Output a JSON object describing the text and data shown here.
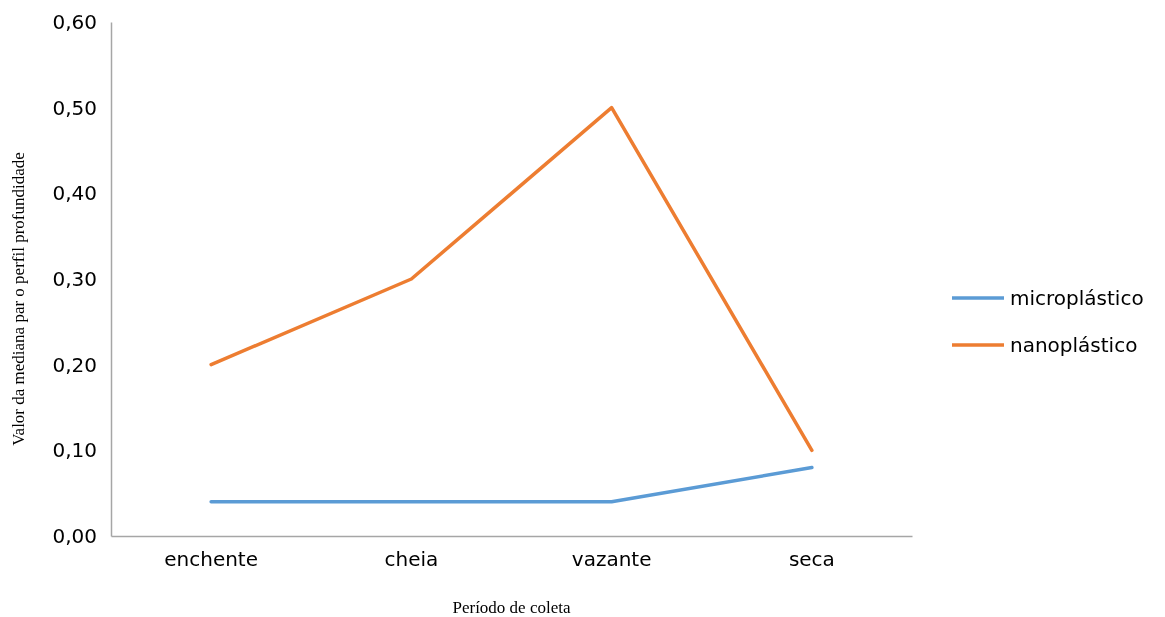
{
  "chart_data": {
    "type": "line",
    "xlabel": "Período de coleta",
    "ylabel": "Valor da mediana par o perfil profundidade",
    "categories": [
      "enchente",
      "cheia",
      "vazante",
      "seca"
    ],
    "series": [
      {
        "name": "microplástico",
        "color": "#5b9bd5",
        "values": [
          0.04,
          0.04,
          0.04,
          0.08
        ]
      },
      {
        "name": "nanoplástico",
        "color": "#ed7d31",
        "values": [
          0.2,
          0.3,
          0.5,
          0.1
        ]
      }
    ],
    "ylim": [
      0,
      0.6
    ],
    "yticks": [
      {
        "value": 0,
        "label": "0,00"
      },
      {
        "value": 0.1,
        "label": "0,10"
      },
      {
        "value": 0.2,
        "label": "0,20"
      },
      {
        "value": 0.3,
        "label": "0,30"
      },
      {
        "value": 0.4,
        "label": "0,40"
      },
      {
        "value": 0.5,
        "label": "0,50"
      },
      {
        "value": 0.6,
        "label": "0,60"
      }
    ],
    "grid": false,
    "legend": "right",
    "marker": "none",
    "line_style": "solid"
  }
}
